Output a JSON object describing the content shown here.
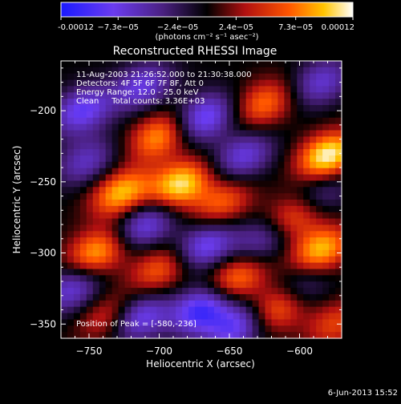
{
  "chart_data": {
    "type": "heatmap",
    "title": "Reconstructed RHESSI Image",
    "xlabel": "Heliocentric X (arcsec)",
    "ylabel": "Heliocentric Y (arcsec)",
    "xlim": [
      -770,
      -570
    ],
    "ylim": [
      -360,
      -165
    ],
    "xticks": [
      -750,
      -700,
      -650,
      -600
    ],
    "yticks": [
      -200,
      -250,
      -300,
      -350
    ],
    "colorbar": {
      "min": -0.00012,
      "max": 0.00012,
      "ticks": [
        -0.00012,
        -7.3e-05,
        -2.4e-05,
        2.4e-05,
        7.3e-05,
        0.00012
      ],
      "tick_labels": [
        "-0.00012",
        "−7.3e−05",
        "−2.4e−05",
        "2.4e−05",
        "7.3e−05",
        "0.00012"
      ],
      "unit_label": "(photons cm⁻² s⁻¹ asec⁻²)"
    },
    "annotations": [
      "11-Aug-2003 21:26:52.000 to 21:30:38.000",
      "Detectors: 4F 5F 6F 7F 8F, Att 0",
      "Energy Range: 12.0 - 25.0 keV",
      "Clean     Total counts: 3.36E+03"
    ],
    "peak_label": "Position of Peak = [-580,-236]",
    "peak": [
      -580,
      -236
    ],
    "blobs": [
      {
        "x": -580,
        "y": -232,
        "v": 1.0
      },
      {
        "x": -700,
        "y": -218,
        "v": 0.7
      },
      {
        "x": -625,
        "y": -195,
        "v": 0.6
      },
      {
        "x": -727,
        "y": -258,
        "v": 0.8
      },
      {
        "x": -685,
        "y": -252,
        "v": 0.9
      },
      {
        "x": -655,
        "y": -265,
        "v": 0.55
      },
      {
        "x": -605,
        "y": -275,
        "v": 0.6
      },
      {
        "x": -745,
        "y": -300,
        "v": 0.75
      },
      {
        "x": -700,
        "y": -312,
        "v": 0.55
      },
      {
        "x": -645,
        "y": -318,
        "v": 0.65
      },
      {
        "x": -585,
        "y": -298,
        "v": 0.8
      },
      {
        "x": -735,
        "y": -345,
        "v": 0.5
      },
      {
        "x": -615,
        "y": -338,
        "v": 0.7
      },
      {
        "x": -575,
        "y": -350,
        "v": 0.45
      },
      {
        "x": -755,
        "y": -200,
        "v": -0.7
      },
      {
        "x": -712,
        "y": -183,
        "v": -0.6
      },
      {
        "x": -668,
        "y": -205,
        "v": -0.75
      },
      {
        "x": -640,
        "y": -232,
        "v": -0.6
      },
      {
        "x": -752,
        "y": -236,
        "v": -0.5
      },
      {
        "x": -710,
        "y": -280,
        "v": -0.65
      },
      {
        "x": -667,
        "y": -295,
        "v": -0.7
      },
      {
        "x": -625,
        "y": -290,
        "v": -0.5
      },
      {
        "x": -585,
        "y": -258,
        "v": -0.4
      },
      {
        "x": -762,
        "y": -325,
        "v": -0.6
      },
      {
        "x": -715,
        "y": -345,
        "v": -0.75
      },
      {
        "x": -670,
        "y": -340,
        "v": -0.85
      },
      {
        "x": -645,
        "y": -352,
        "v": -0.7
      },
      {
        "x": -600,
        "y": -325,
        "v": -0.45
      },
      {
        "x": -585,
        "y": -180,
        "v": -0.55
      }
    ]
  },
  "footer": {
    "timestamp": "6-Jun-2013 15:52"
  }
}
